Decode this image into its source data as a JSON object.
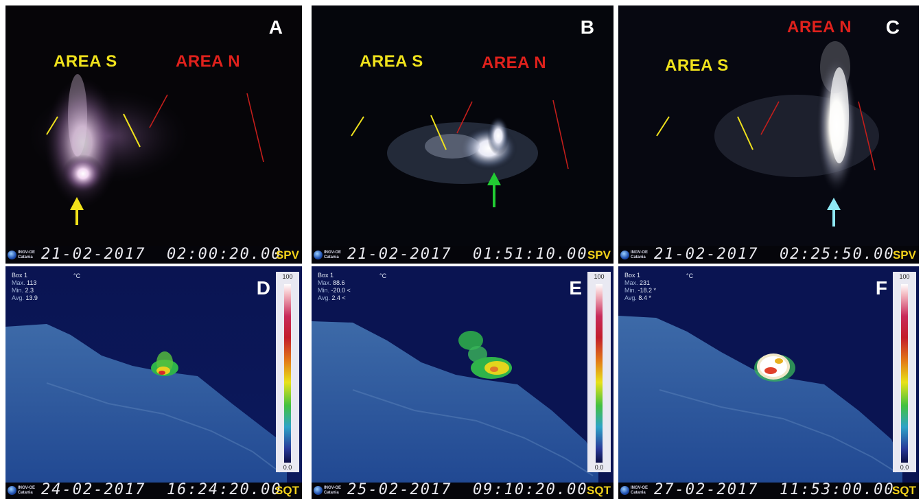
{
  "panels": {
    "A": {
      "letter": "A",
      "area_s": "AREA S",
      "area_n": "AREA N",
      "timestamp": "21-02-2017  02:00:20.00",
      "camera": "SPV"
    },
    "B": {
      "letter": "B",
      "area_s": "AREA S",
      "area_n": "AREA N",
      "timestamp": "21-02-2017  01:51:10.00",
      "camera": "SPV"
    },
    "C": {
      "letter": "C",
      "area_s": "AREA S",
      "area_n": "AREA N",
      "timestamp": "21-02-2017  02:25:50.00",
      "camera": "SPV"
    },
    "D": {
      "letter": "D",
      "box_label": "Box 1",
      "max_label": "Max.",
      "max": "113",
      "min_label": "Min.",
      "min": "2.3",
      "avg_label": "Avg.",
      "avg": "13.9",
      "unit": "°C",
      "scale_max": "100",
      "scale_min": "0.0",
      "timestamp": "24-02-2017  16:24:20.00",
      "camera": "SQT"
    },
    "E": {
      "letter": "E",
      "box_label": "Box 1",
      "max_label": "Max.",
      "max": "88.6",
      "min_label": "Min.",
      "min": "-20.0 <",
      "avg_label": "Avg.",
      "avg": "2.4 <",
      "unit": "°C",
      "scale_max": "100",
      "scale_min": "0.0",
      "timestamp": "25-02-2017  09:10:20.00",
      "camera": "SQT"
    },
    "F": {
      "letter": "F",
      "box_label": "Box 1",
      "max_label": "Max.",
      "max": "231",
      "min_label": "Min.",
      "min": "-18.2 *",
      "avg_label": "Avg.",
      "avg": "8.4 *",
      "unit": "°C",
      "scale_max": "100",
      "scale_min": "0.0",
      "timestamp": "27-02-2017  11:53:00.00",
      "camera": "SQT"
    }
  },
  "logo_text": {
    "line1": "INGV-OE",
    "line2": "Catania"
  },
  "colors": {
    "area_s": "#f0e21c",
    "area_n": "#e0211c",
    "arrow_a": "#f2e21a",
    "arrow_b": "#22cc33",
    "arrow_c": "#8fe8f5",
    "camera": "#f3d21a"
  },
  "icons": {
    "arrow_a": "up-arrow-icon",
    "arrow_b": "up-arrow-icon",
    "arrow_c": "up-arrow-icon",
    "logo": "ingv-globe-icon"
  }
}
